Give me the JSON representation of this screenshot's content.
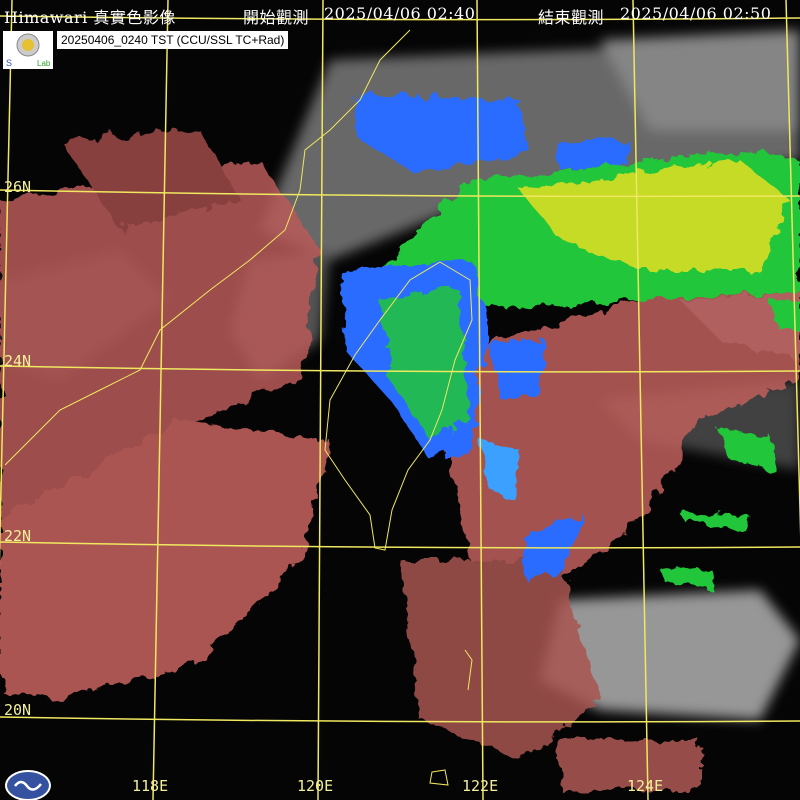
{
  "header": {
    "product": "Himawari 真實色影像",
    "start_label": "開始觀測",
    "start_time": "2025/04/06 02:40",
    "end_label": "結束觀測",
    "end_time": "2025/04/06 02:50"
  },
  "stamp": "20250406_0240 TST (CCU/SSL TC+Rad)",
  "logo_text": "Severe Storm Lab",
  "lat_labels": [
    "26N",
    "24N",
    "22N",
    "20N"
  ],
  "lon_labels": [
    "118E",
    "120E",
    "122E",
    "124E"
  ],
  "colors": {
    "grid": "#f0e860",
    "coast": "#f0e860",
    "cloud_warm": "#d66a66",
    "cloud_cold": "#9a9a9a",
    "radar_light": "#2a6cff",
    "radar_mid": "#22c63a",
    "radar_heavy": "#f0e020"
  },
  "icons": {
    "cwb_logo": "cwb-logo-icon",
    "ssl_logo": "ssl-logo-icon"
  }
}
